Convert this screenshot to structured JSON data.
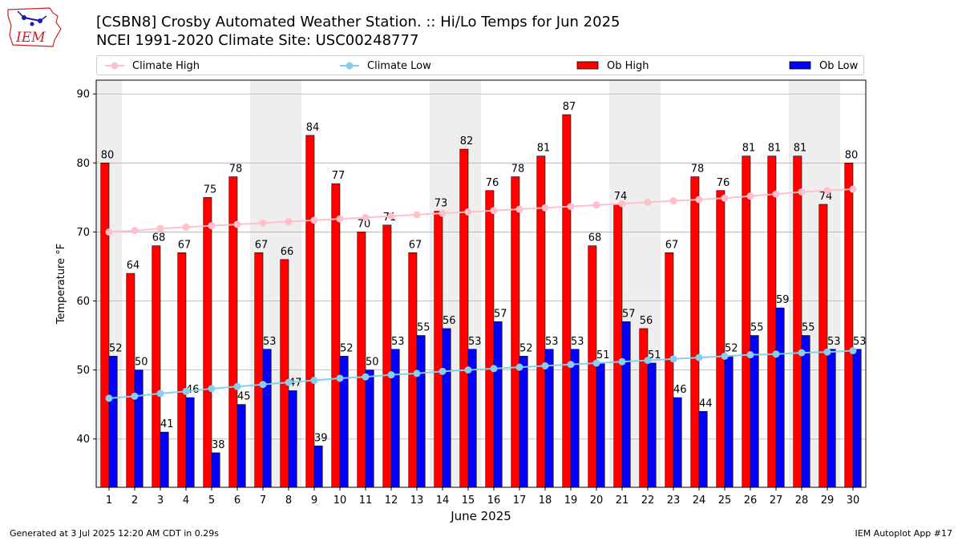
{
  "header": {
    "title": "[CSBN8] Crosby Automated Weather Station. :: Hi/Lo Temps for Jun 2025",
    "subtitle": "NCEI 1991-2020 Climate Site: USC00248777",
    "logo_text": "IEM"
  },
  "footer": {
    "generated": "Generated at 3 Jul 2025 12:20 AM CDT in 0.29s",
    "app": "IEM Autoplot App #17"
  },
  "colors": {
    "ob_high": "#ff0000",
    "ob_low": "#0000ff",
    "climate_high": "#ffc0cb",
    "climate_low": "#87ceeb",
    "weekend_band": "#eeeeee",
    "logo_red": "#cc2222",
    "logo_blue": "#1a1aaa"
  },
  "chart_data": {
    "type": "bar",
    "xlabel": "June 2025",
    "ylabel": "Temperature °F",
    "ylim": [
      33,
      92
    ],
    "yticks": [
      40,
      50,
      60,
      70,
      80,
      90
    ],
    "grid": "horizontal",
    "legend_placement": "top",
    "categories": [
      "1",
      "2",
      "3",
      "4",
      "5",
      "6",
      "7",
      "8",
      "9",
      "10",
      "11",
      "12",
      "13",
      "14",
      "15",
      "16",
      "17",
      "18",
      "19",
      "20",
      "21",
      "22",
      "23",
      "24",
      "25",
      "26",
      "27",
      "28",
      "29",
      "30"
    ],
    "shaded_days": [
      1,
      7,
      8,
      14,
      15,
      21,
      22,
      28,
      29
    ],
    "series": [
      {
        "name": "Ob High",
        "kind": "bar",
        "color": "#ff0000",
        "values": [
          80,
          64,
          68,
          67,
          75,
          78,
          67,
          66,
          84,
          77,
          70,
          71,
          67,
          73,
          82,
          76,
          78,
          81,
          87,
          68,
          74,
          56,
          67,
          78,
          76,
          81,
          81,
          81,
          74,
          80
        ]
      },
      {
        "name": "Ob Low",
        "kind": "bar",
        "color": "#0000ff",
        "values": [
          52,
          50,
          41,
          46,
          38,
          45,
          53,
          47,
          39,
          52,
          50,
          53,
          55,
          56,
          53,
          57,
          52,
          53,
          53,
          51,
          57,
          51,
          46,
          44,
          52,
          55,
          59,
          55,
          53,
          53
        ]
      },
      {
        "name": "Climate High",
        "kind": "line",
        "color": "#ffc0cb",
        "values": [
          70.0,
          70.2,
          70.5,
          70.7,
          70.9,
          71.1,
          71.3,
          71.5,
          71.7,
          71.9,
          72.1,
          72.3,
          72.5,
          72.7,
          72.9,
          73.1,
          73.3,
          73.5,
          73.7,
          73.9,
          74.1,
          74.3,
          74.5,
          74.7,
          74.9,
          75.2,
          75.5,
          75.8,
          76.0,
          76.2
        ]
      },
      {
        "name": "Climate Low",
        "kind": "line",
        "color": "#87ceeb",
        "values": [
          45.9,
          46.2,
          46.6,
          46.9,
          47.3,
          47.6,
          47.9,
          48.2,
          48.5,
          48.8,
          49.0,
          49.3,
          49.5,
          49.8,
          50.0,
          50.2,
          50.4,
          50.6,
          50.8,
          51.0,
          51.2,
          51.4,
          51.6,
          51.8,
          52.0,
          52.2,
          52.3,
          52.5,
          52.6,
          52.8
        ]
      }
    ]
  }
}
